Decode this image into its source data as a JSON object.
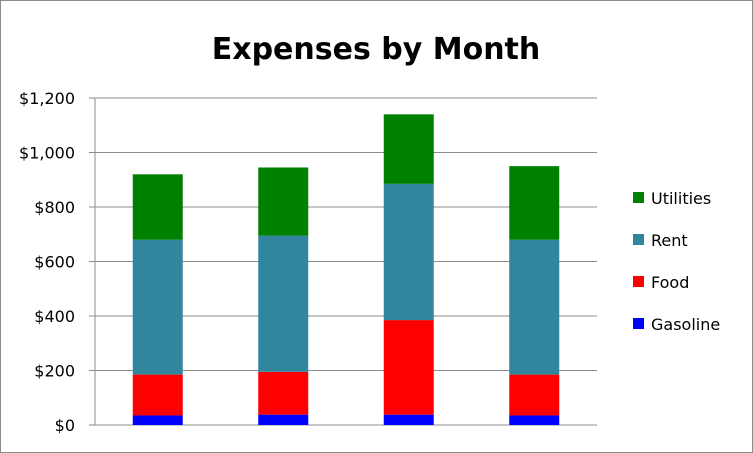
{
  "chart_data": {
    "type": "bar",
    "stacked": true,
    "title": "Expenses by Month",
    "xlabel": "",
    "ylabel": "",
    "categories": [
      "",
      "",
      "",
      ""
    ],
    "ylim": [
      0,
      1200
    ],
    "yticks": [
      "$0",
      "$200",
      "$400",
      "$600",
      "$800",
      "$1,000",
      "$1,200"
    ],
    "ytick_values": [
      0,
      200,
      400,
      600,
      800,
      1000,
      1200
    ],
    "grid": true,
    "legend_position": "right",
    "series": [
      {
        "name": "Gasoline",
        "color": "#0000ff",
        "values": [
          35,
          38,
          38,
          35
        ]
      },
      {
        "name": "Food",
        "color": "#ff0000",
        "values": [
          150,
          157,
          347,
          150
        ]
      },
      {
        "name": "Rent",
        "color": "#31859c",
        "values": [
          495,
          500,
          500,
          495
        ]
      },
      {
        "name": "Utilities",
        "color": "#008000",
        "values": [
          240,
          250,
          255,
          270
        ]
      }
    ]
  }
}
